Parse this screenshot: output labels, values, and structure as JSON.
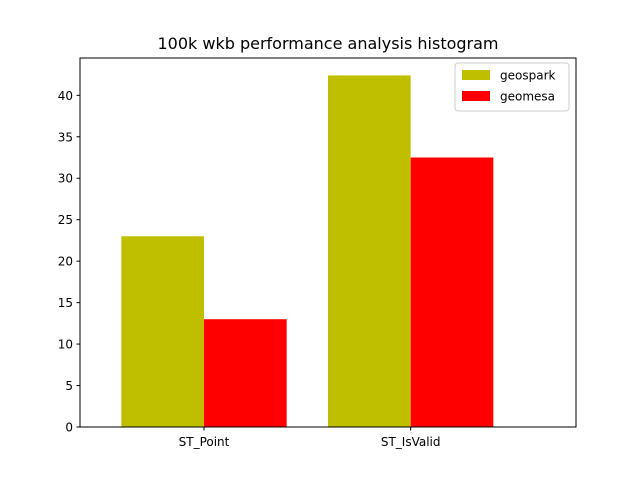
{
  "chart_data": {
    "type": "bar",
    "title": "100k wkb performance analysis histogram",
    "xlabel": "",
    "ylabel": "",
    "categories": [
      "ST_Point",
      "ST_IsValid"
    ],
    "series": [
      {
        "name": "geospark",
        "values": [
          23.0,
          42.4
        ],
        "color": "#bfbf00"
      },
      {
        "name": "geomesa",
        "values": [
          13.0,
          32.5
        ],
        "color": "#ff0000"
      }
    ],
    "ylim": [
      0,
      44.5
    ],
    "yticks": [
      0,
      5,
      10,
      15,
      20,
      25,
      30,
      35,
      40
    ],
    "grid": false,
    "legend_position": "top-right"
  }
}
